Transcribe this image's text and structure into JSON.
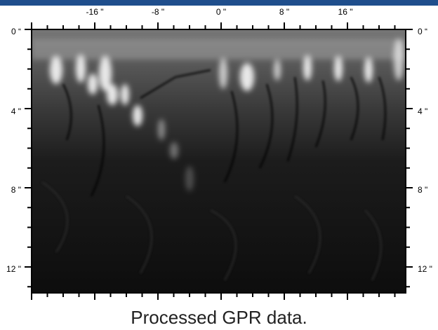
{
  "figure": {
    "x_tick_labels": [
      "-16 \"",
      "-8 \"",
      "0 \"",
      "8 \"",
      "16 \""
    ],
    "y_tick_labels_left": [
      "0 “",
      "4 \"",
      "8 \"",
      "12 \""
    ],
    "y_tick_labels_right": [
      "0 “",
      "4 \"",
      "8 \"",
      "12 \""
    ],
    "caption": "Processed GPR data."
  }
}
